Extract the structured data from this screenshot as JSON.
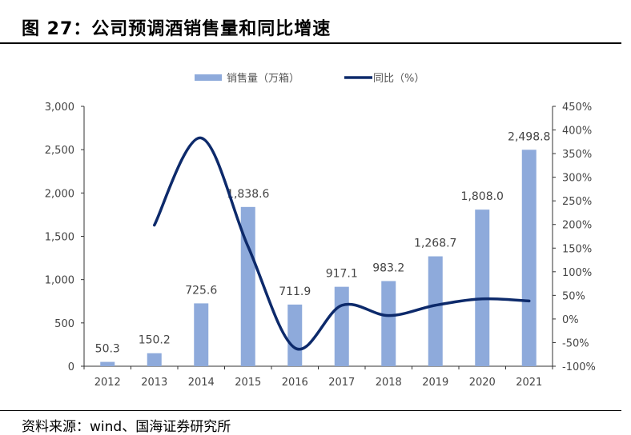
{
  "title": "图 27：公司预调酒销售量和同比增速",
  "source": "资料来源：wind、国海证券研究所",
  "chart_data": {
    "type": "bar+line",
    "categories": [
      "2012",
      "2013",
      "2014",
      "2015",
      "2016",
      "2017",
      "2018",
      "2019",
      "2020",
      "2021"
    ],
    "series": [
      {
        "name": "销售量（万箱）",
        "type": "bar",
        "axis": "left",
        "color": "#8eaadb",
        "values": [
          50.3,
          150.2,
          725.6,
          1838.6,
          711.9,
          917.1,
          983.2,
          1268.7,
          1808.0,
          2498.8
        ],
        "labels": [
          "50.3",
          "150.2",
          "725.6",
          "1,838.6",
          "711.9",
          "917.1",
          "983.2",
          "1,268.7",
          "1,808.0",
          "2,498.8"
        ]
      },
      {
        "name": "同比（%）",
        "type": "line",
        "axis": "right",
        "color": "#0d2a6b",
        "values": [
          null,
          198.6,
          383.1,
          153.4,
          -61.3,
          28.8,
          7.2,
          29.0,
          42.5,
          38.2
        ]
      }
    ],
    "left_axis": {
      "range": [
        0,
        3000
      ],
      "ticks": [
        "0",
        "500",
        "1,000",
        "1,500",
        "2,000",
        "2,500",
        "3,000"
      ]
    },
    "right_axis": {
      "range": [
        -100,
        450
      ],
      "ticks": [
        "-100%",
        "-50%",
        "0%",
        "50%",
        "100%",
        "150%",
        "200%",
        "250%",
        "300%",
        "350%",
        "400%",
        "450%"
      ]
    },
    "legend": "top",
    "grid": false
  }
}
